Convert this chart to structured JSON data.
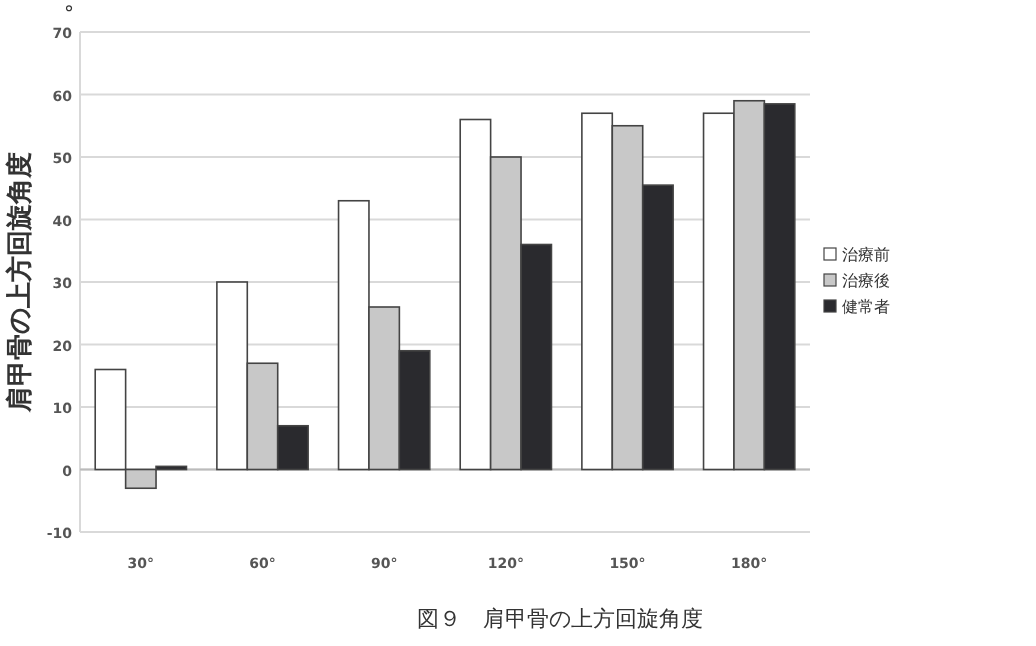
{
  "chart_data": {
    "type": "bar",
    "title": "図９　肩甲骨の上方回旋角度",
    "ylabel": "肩甲骨の上方回旋角度",
    "annotations": [
      "°"
    ],
    "categories": [
      "30°",
      "60°",
      "90°",
      "120°",
      "150°",
      "180°"
    ],
    "series": [
      {
        "name": "治療前",
        "color": "#ffffff",
        "values": [
          16,
          30,
          43,
          56,
          57,
          57
        ]
      },
      {
        "name": "治療後",
        "color": "#c8c8c8",
        "values": [
          -3,
          17,
          26,
          50,
          55,
          59
        ]
      },
      {
        "name": "健常者",
        "color": "#2a2a2e",
        "values": [
          0.5,
          7,
          19,
          36,
          45.5,
          58.5
        ]
      }
    ],
    "ylim": [
      -10,
      70
    ],
    "yticks": [
      -10,
      0,
      10,
      20,
      30,
      40,
      50,
      60,
      70
    ],
    "grid": "y",
    "legend": "right"
  }
}
